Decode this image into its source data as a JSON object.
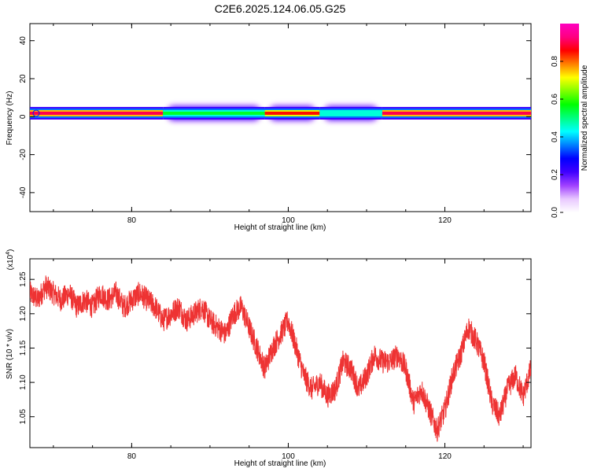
{
  "title": "C2E6.2025.124.06.05.G25",
  "chart_data": [
    {
      "type": "heatmap",
      "title": "C2E6.2025.124.06.05.G25",
      "xlabel": "Height of straight line (km)",
      "ylabel": "Frequency (Hz)",
      "xlim": [
        67,
        131
      ],
      "ylim": [
        -50,
        49
      ],
      "x_ticks": [
        80,
        100,
        120
      ],
      "y_ticks": [
        -40,
        -20,
        0,
        20,
        40
      ],
      "colorbar": {
        "label": "Normalized spectral amplitude",
        "range": [
          0,
          1
        ],
        "ticks": [
          "0.0",
          "0.2",
          "0.4",
          "0.6",
          "0.8"
        ],
        "colormap": [
          "#ffffff",
          "#e8c8ff",
          "#a040ff",
          "#4000ff",
          "#0000ff",
          "#0080ff",
          "#00ffff",
          "#00ff80",
          "#00ff00",
          "#80ff00",
          "#ffff00",
          "#ff8000",
          "#ff0000",
          "#ff0080",
          "#ff00c0"
        ]
      },
      "band": {
        "center_freq": 1.8,
        "segments": [
          {
            "x": [
              67,
              84
            ],
            "amp": 0.9,
            "halo": 0.0
          },
          {
            "x": [
              84,
              97
            ],
            "amp": 0.55,
            "halo": 0.2
          },
          {
            "x": [
              97,
              104
            ],
            "amp": 0.85,
            "halo": 0.1
          },
          {
            "x": [
              104,
              112
            ],
            "amp": 0.45,
            "halo": 0.2
          },
          {
            "x": [
              112,
              131
            ],
            "amp": 0.9,
            "halo": 0.0
          }
        ]
      }
    },
    {
      "type": "line",
      "xlabel": "Height of straight line (km)",
      "ylabel": "SNR (10 * v/v)",
      "y_multiplier": "(x10",
      "y_multiplier_exp": "4",
      "y_multiplier_close": ")",
      "xlim": [
        67,
        131
      ],
      "ylim": [
        1.005,
        1.28
      ],
      "x_ticks": [
        80,
        100,
        120
      ],
      "y_ticks": [
        "1.05",
        "1.10",
        "1.15",
        "1.20",
        "1.25"
      ],
      "color": "#ee3333",
      "series": [
        {
          "x": [
            67,
            68,
            69,
            70,
            71,
            72,
            73,
            74,
            75,
            76,
            77,
            78,
            79,
            80,
            81,
            82,
            83,
            84,
            85,
            86,
            87,
            88,
            89,
            90,
            91,
            92,
            93,
            94,
            95,
            96,
            97,
            98,
            99,
            100,
            101,
            102,
            103,
            104,
            105,
            106,
            107,
            108,
            109,
            110,
            111,
            112,
            113,
            114,
            115,
            116,
            117,
            118,
            119,
            120,
            121,
            122,
            123,
            124,
            125,
            126,
            127,
            128,
            129,
            130,
            131
          ],
          "values": [
            1.23,
            1.22,
            1.24,
            1.23,
            1.22,
            1.23,
            1.21,
            1.22,
            1.21,
            1.23,
            1.22,
            1.23,
            1.21,
            1.22,
            1.23,
            1.22,
            1.21,
            1.19,
            1.2,
            1.21,
            1.19,
            1.2,
            1.21,
            1.19,
            1.18,
            1.17,
            1.2,
            1.21,
            1.18,
            1.15,
            1.12,
            1.15,
            1.17,
            1.19,
            1.15,
            1.11,
            1.09,
            1.1,
            1.08,
            1.09,
            1.13,
            1.12,
            1.09,
            1.11,
            1.14,
            1.13,
            1.13,
            1.14,
            1.12,
            1.07,
            1.09,
            1.06,
            1.03,
            1.06,
            1.11,
            1.14,
            1.18,
            1.16,
            1.13,
            1.07,
            1.05,
            1.09,
            1.11,
            1.08,
            1.12
          ]
        }
      ]
    }
  ]
}
